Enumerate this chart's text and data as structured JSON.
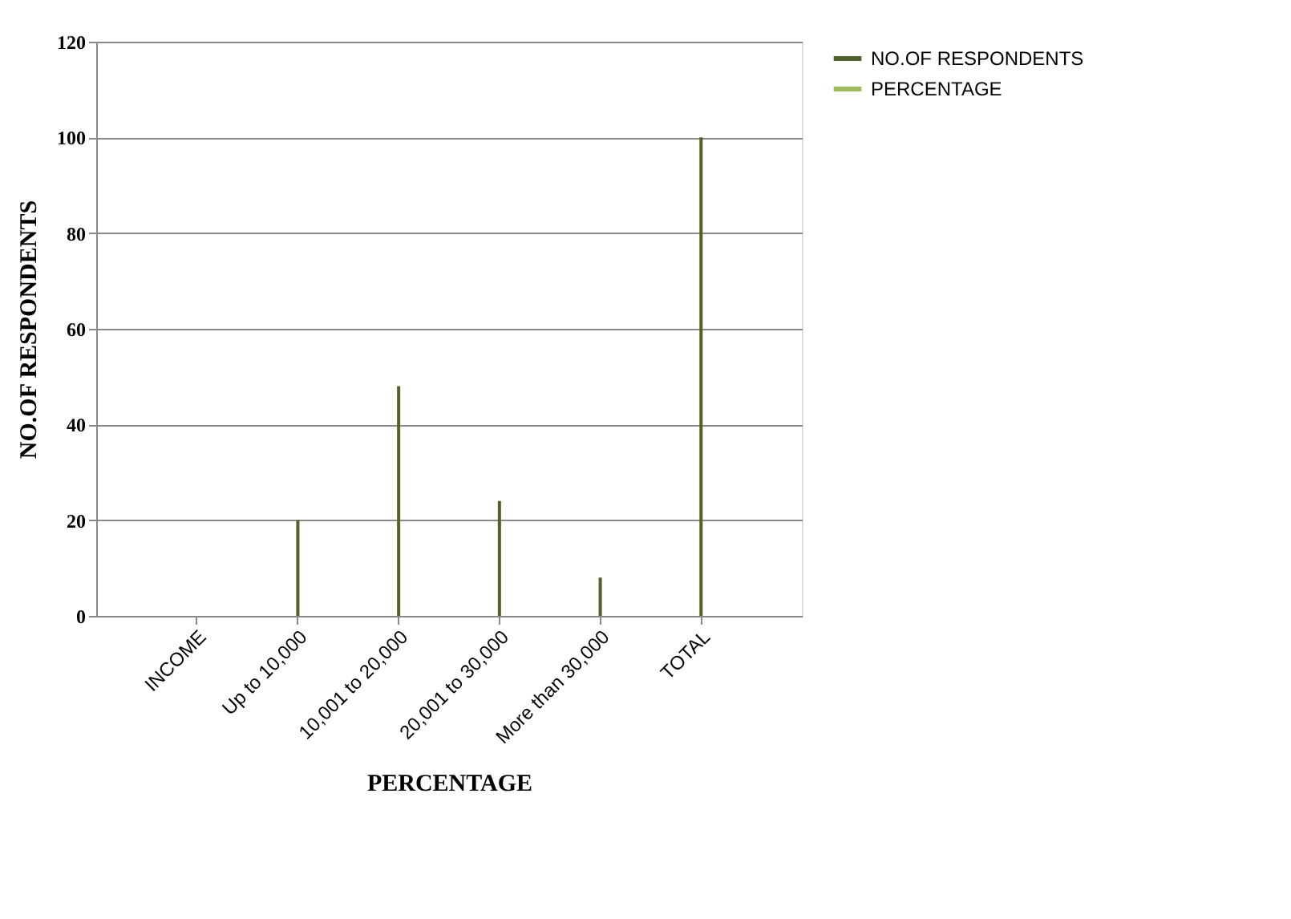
{
  "chart_data": {
    "type": "bar",
    "xlabel": "PERCENTAGE",
    "ylabel": "NO.OF RESPONDENTS",
    "categories": [
      "INCOME",
      "Up to 10,000",
      "10,001 to 20,000",
      "20,001 to 30,000",
      "More than 30,000",
      "TOTAL"
    ],
    "series": [
      {
        "name": "NO.OF RESPONDENTS",
        "color": "#4f6228",
        "values": [
          null,
          20,
          48,
          24,
          8,
          100
        ]
      },
      {
        "name": "PERCENTAGE",
        "color": "#9bbb59",
        "values": [
          null,
          null,
          null,
          null,
          null,
          null
        ]
      }
    ],
    "ylim": [
      0,
      120
    ],
    "yticks": [
      0,
      20,
      40,
      60,
      80,
      100,
      120
    ],
    "grid": "y",
    "legend": "right"
  }
}
